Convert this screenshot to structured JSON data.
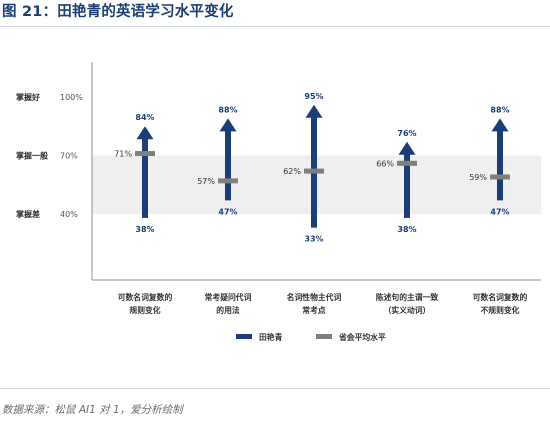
{
  "header": {
    "title": "图 21：田艳青的英语学习水平变化"
  },
  "footer": {
    "source": "数据来源：松鼠 AI1 对 1，爱分析绘制"
  },
  "chart_data": {
    "type": "range-arrow",
    "title": "图 21：田艳青的英语学习水平变化",
    "y_ticks": [
      {
        "value": 100,
        "level": "掌握好",
        "label": "100%"
      },
      {
        "value": 70,
        "level": "掌握一般",
        "label": "70%"
      },
      {
        "value": 40,
        "level": "掌握差",
        "label": "40%"
      }
    ],
    "shaded_band": [
      40,
      70
    ],
    "categories": [
      [
        "可数名词复数的",
        "规则变化"
      ],
      [
        "常考疑问代词",
        "的用法"
      ],
      [
        "名词性物主代词",
        "常考点"
      ],
      [
        "陈述句的主谓一致",
        "（实义动词）"
      ],
      [
        "可数名词复数的",
        "不规则变化"
      ]
    ],
    "series": [
      {
        "name": "田艳青",
        "start": [
          38,
          47,
          33,
          38,
          47
        ],
        "end": [
          84,
          88,
          95,
          76,
          88
        ],
        "start_labels": [
          "38%",
          "47%",
          "33%",
          "38%",
          "47%"
        ],
        "end_labels": [
          "84%",
          "88%",
          "95%",
          "76%",
          "88%"
        ],
        "color": "#1b3e78"
      },
      {
        "name": "省会平均水平",
        "values": [
          71,
          57,
          62,
          66,
          59
        ],
        "labels": [
          "71%",
          "57%",
          "62%",
          "66%",
          "59%"
        ],
        "color": "#7f7f7f"
      }
    ],
    "legend_position": "bottom"
  }
}
